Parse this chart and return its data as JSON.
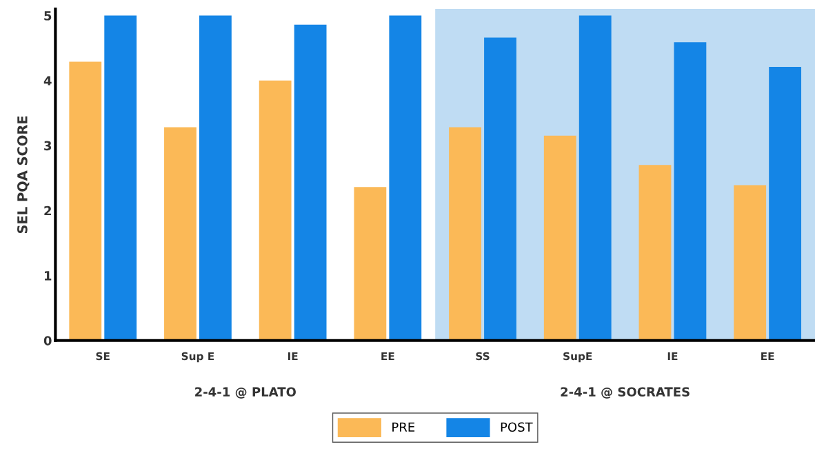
{
  "chart_data": {
    "type": "bar",
    "ylabel": "SEL PQA SCORE",
    "categories": [
      "SE",
      "Sup E",
      "IE",
      "EE",
      "SS",
      "SupE",
      "IE",
      "EE"
    ],
    "series": [
      {
        "name": "PRE",
        "color": "#fbb957",
        "values": [
          4.29,
          3.28,
          4.0,
          2.36,
          3.28,
          3.15,
          2.7,
          2.39
        ]
      },
      {
        "name": "POST",
        "color": "#1485e6",
        "values": [
          5.0,
          5.0,
          4.86,
          5.0,
          4.66,
          5.0,
          4.59,
          4.21
        ]
      }
    ],
    "ylim": [
      0,
      5.1
    ],
    "yticks": [
      0,
      1,
      2,
      3,
      4,
      5
    ],
    "annotations": [
      "2-4-1 @ PLATO",
      "2-4-1 @ SOCRATES"
    ],
    "grid": false,
    "legend": "bottom"
  }
}
